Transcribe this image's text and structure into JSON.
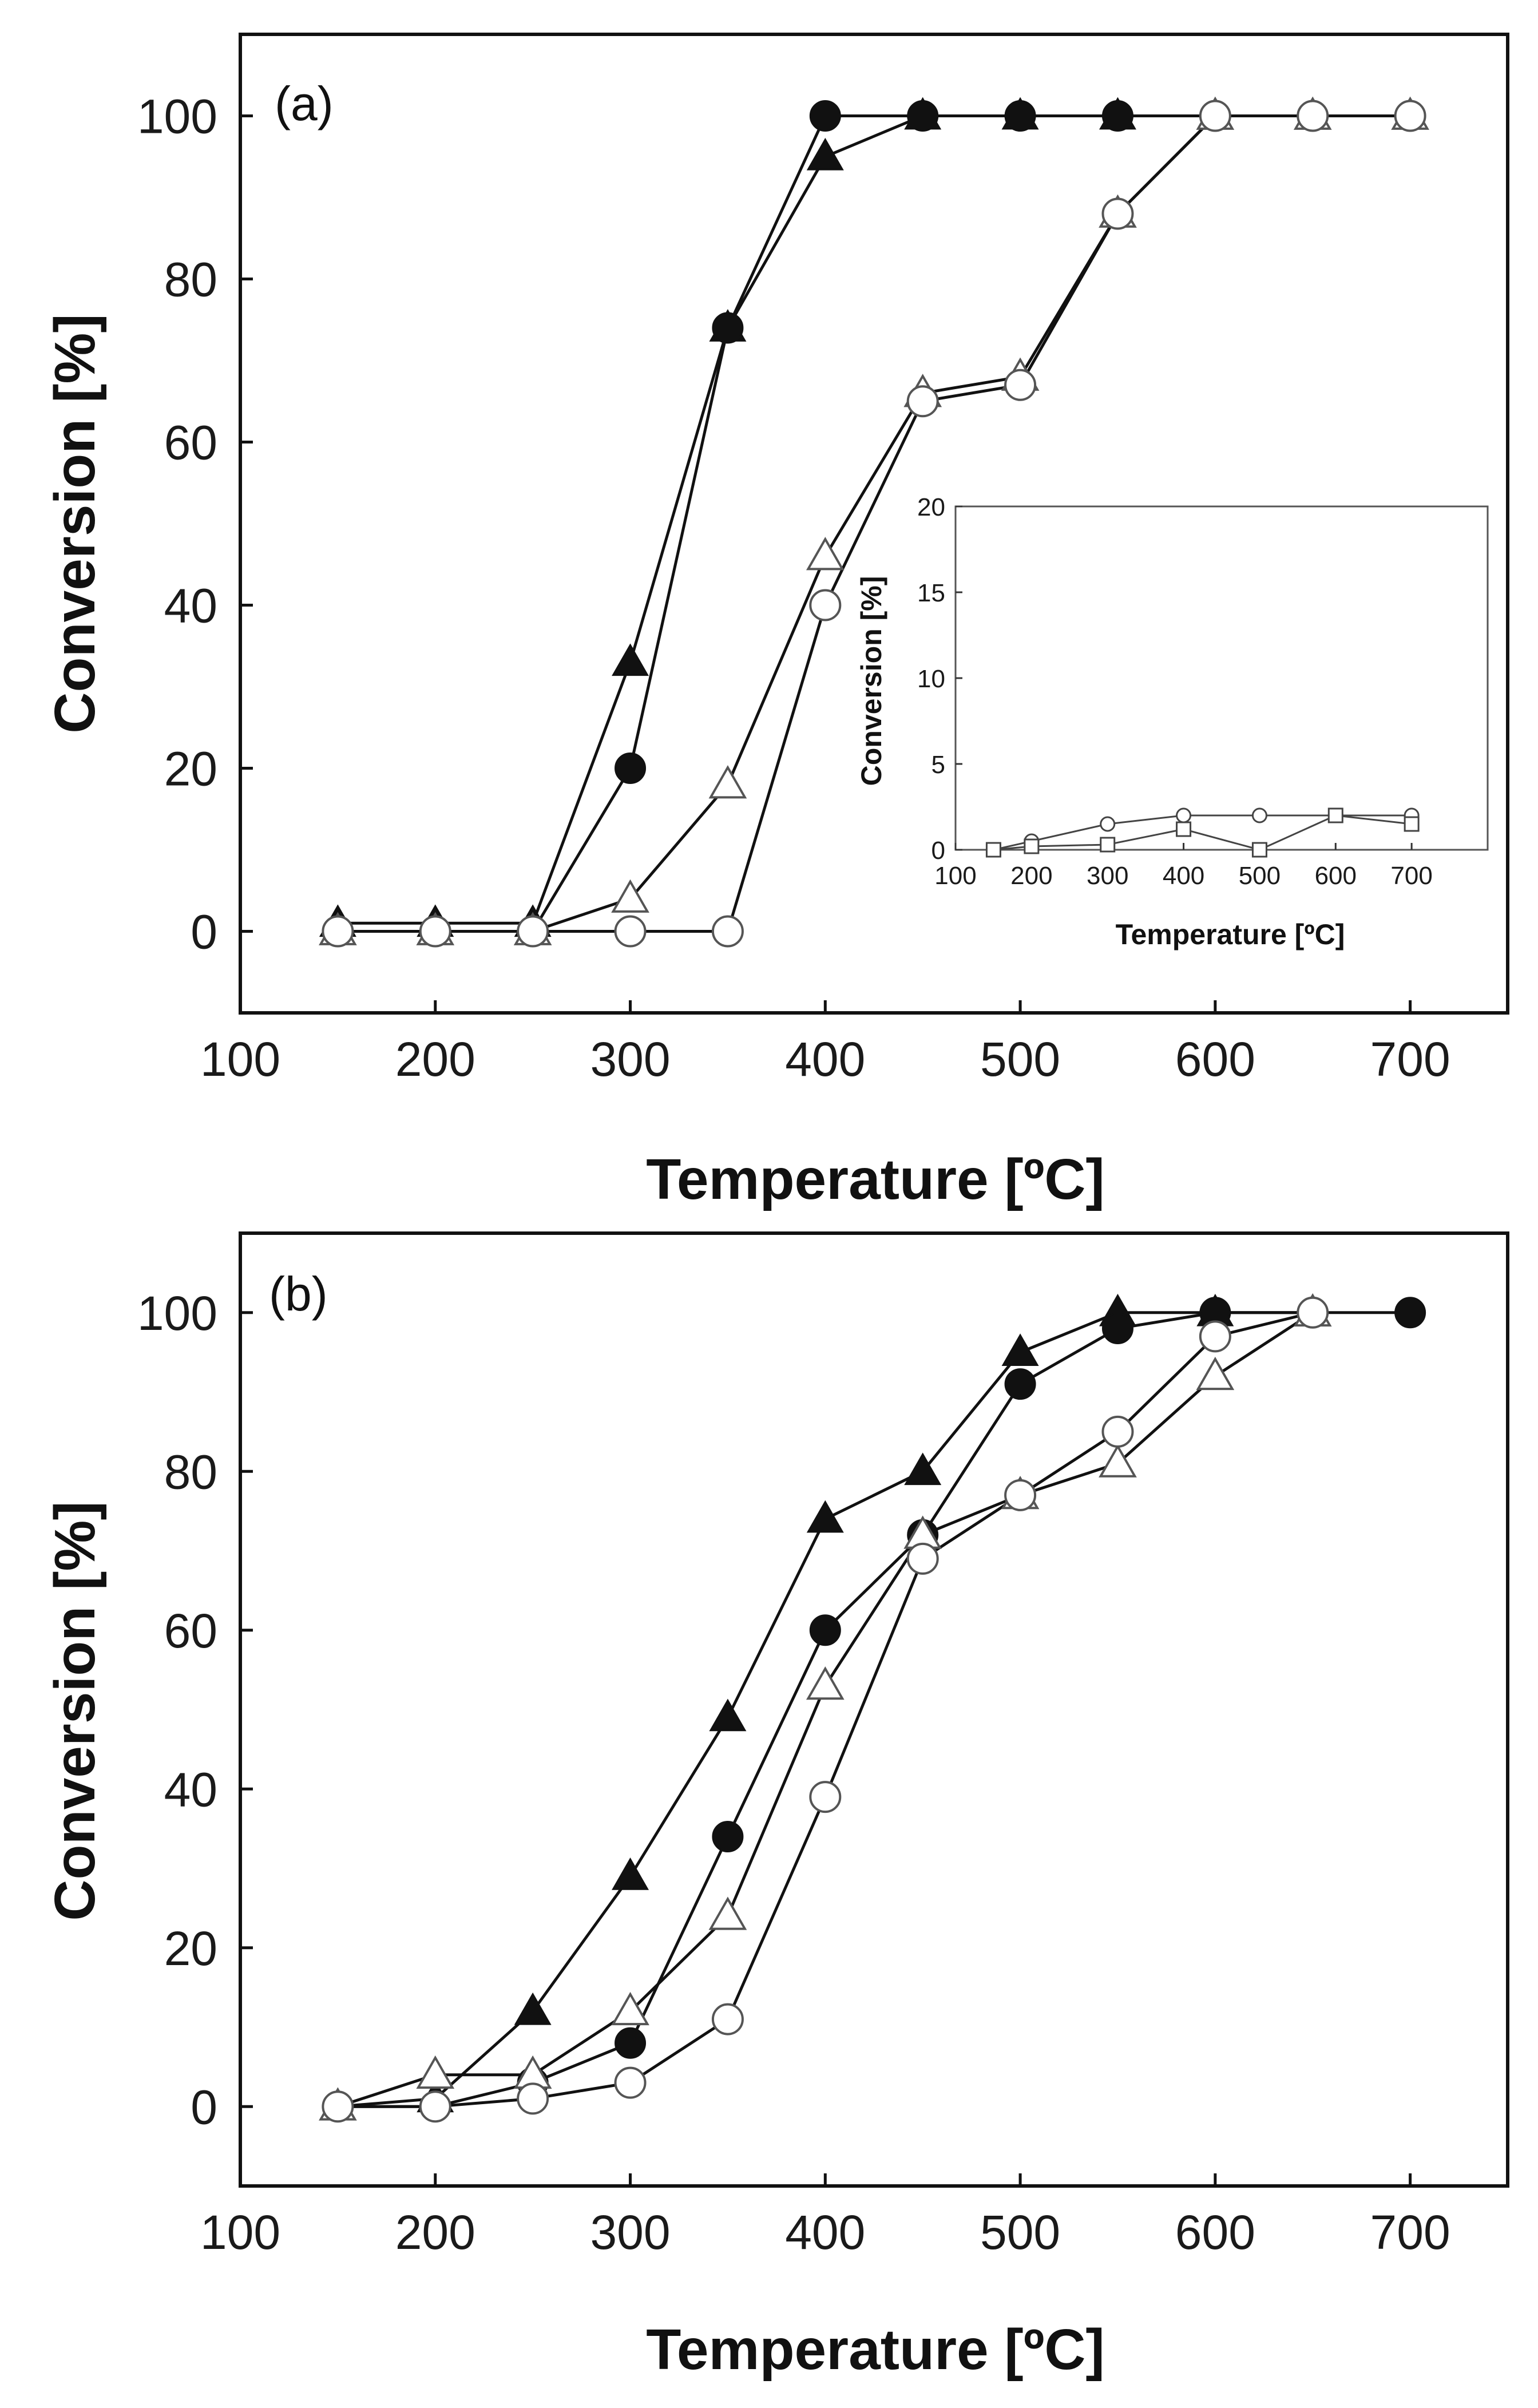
{
  "chart_data": [
    {
      "type": "line",
      "panel_label": "(a)",
      "xlabel": "Temperature [ºC]",
      "ylabel": "Conversion [%]",
      "xlim": [
        100,
        750
      ],
      "ylim": [
        -10,
        110
      ],
      "xticks": [
        100,
        200,
        300,
        400,
        500,
        600,
        700
      ],
      "yticks": [
        0,
        20,
        40,
        60,
        80,
        100
      ],
      "series": [
        {
          "name": "filled triangle",
          "marker": "triangle",
          "filled": true,
          "x": [
            150,
            200,
            250,
            300,
            350,
            400,
            450,
            500,
            550,
            600,
            650,
            700
          ],
          "values": [
            1,
            1,
            1,
            33,
            74,
            95,
            100,
            100,
            100,
            100,
            100,
            100
          ]
        },
        {
          "name": "filled circle",
          "marker": "circle",
          "filled": true,
          "x": [
            150,
            200,
            250,
            300,
            350,
            400,
            450,
            500,
            550,
            600,
            650,
            700
          ],
          "values": [
            0,
            0,
            0,
            20,
            74,
            100,
            100,
            100,
            100,
            100,
            100,
            100
          ]
        },
        {
          "name": "open triangle",
          "marker": "triangle",
          "filled": false,
          "x": [
            150,
            200,
            250,
            300,
            350,
            400,
            450,
            500,
            550,
            600,
            650,
            700
          ],
          "values": [
            0,
            0,
            0,
            4,
            18,
            46,
            66,
            68,
            88,
            100,
            100,
            100
          ]
        },
        {
          "name": "open circle",
          "marker": "circle",
          "filled": false,
          "x": [
            150,
            200,
            250,
            300,
            350,
            400,
            450,
            500,
            550,
            600,
            650,
            700
          ],
          "values": [
            0,
            0,
            0,
            0,
            0,
            40,
            65,
            67,
            88,
            100,
            100,
            100
          ]
        }
      ],
      "inset": {
        "type": "line",
        "xlabel": "Temperature [ºC]",
        "ylabel": "Conversion [%]",
        "xlim": [
          100,
          800
        ],
        "ylim": [
          0,
          20
        ],
        "xticks": [
          100,
          200,
          300,
          400,
          500,
          600,
          700
        ],
        "yticks": [
          0,
          5,
          10,
          15,
          20
        ],
        "series": [
          {
            "name": "open circle",
            "marker": "circle",
            "x": [
              150,
              200,
              300,
              400,
              500,
              600,
              700
            ],
            "values": [
              0,
              0.5,
              1.5,
              2,
              2,
              2,
              2
            ]
          },
          {
            "name": "open square",
            "marker": "square",
            "x": [
              150,
              200,
              300,
              400,
              500,
              600,
              700
            ],
            "values": [
              0,
              0.2,
              0.3,
              1.2,
              0,
              2,
              1.5
            ]
          }
        ]
      }
    },
    {
      "type": "line",
      "panel_label": "(b)",
      "xlabel": "Temperature [ºC]",
      "ylabel": "Conversion [%]",
      "xlim": [
        100,
        750
      ],
      "ylim": [
        -10,
        110
      ],
      "xticks": [
        100,
        200,
        300,
        400,
        500,
        600,
        700
      ],
      "yticks": [
        0,
        20,
        40,
        60,
        80,
        100
      ],
      "series": [
        {
          "name": "filled triangle",
          "marker": "triangle",
          "filled": true,
          "x": [
            150,
            200,
            250,
            300,
            350,
            400,
            450,
            500,
            550,
            600,
            650
          ],
          "values": [
            0,
            1,
            12,
            29,
            49,
            74,
            80,
            95,
            100,
            100,
            100
          ]
        },
        {
          "name": "filled circle",
          "marker": "circle",
          "filled": true,
          "x": [
            150,
            200,
            250,
            300,
            350,
            400,
            450,
            500,
            550,
            600,
            650,
            700
          ],
          "values": [
            0,
            0,
            3,
            8,
            34,
            60,
            72,
            91,
            98,
            100,
            100,
            100
          ]
        },
        {
          "name": "open triangle",
          "marker": "triangle",
          "filled": false,
          "x": [
            150,
            200,
            250,
            300,
            350,
            400,
            450,
            500,
            550,
            600,
            650
          ],
          "values": [
            0,
            4,
            4,
            12,
            24,
            53,
            72,
            77,
            81,
            92,
            100
          ]
        },
        {
          "name": "open circle",
          "marker": "circle",
          "filled": false,
          "x": [
            150,
            200,
            250,
            300,
            350,
            400,
            450,
            500,
            550,
            600,
            650
          ],
          "values": [
            0,
            0,
            1,
            3,
            11,
            39,
            69,
            77,
            85,
            97,
            100
          ]
        }
      ]
    }
  ]
}
